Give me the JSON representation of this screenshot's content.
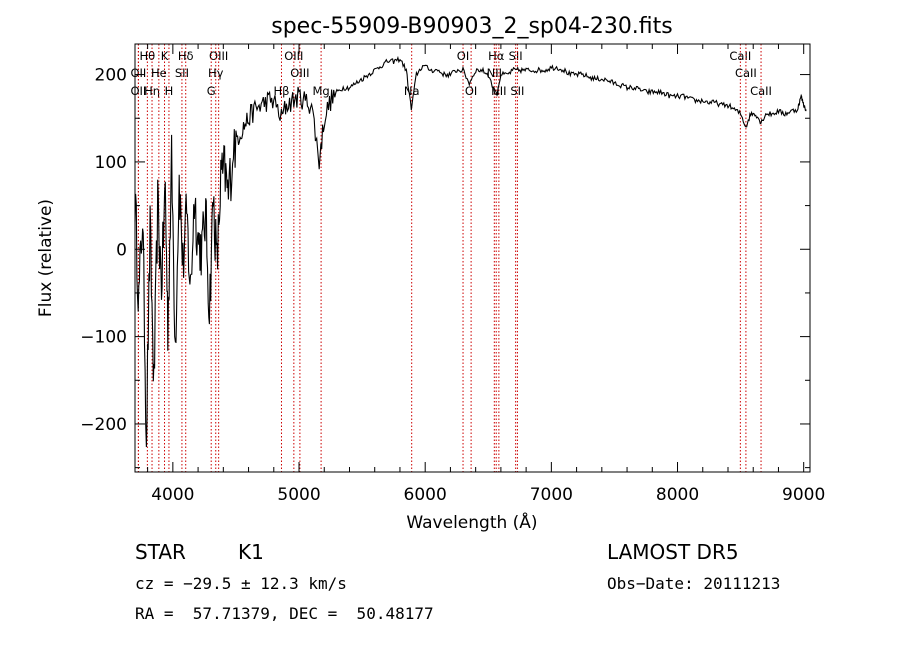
{
  "chart_data": {
    "type": "line",
    "title": "spec-55909-B90903_2_sp04-230.fits",
    "xlabel": "Wavelength (Å)",
    "ylabel": "Flux (relative)",
    "xlim": [
      3700,
      9050
    ],
    "ylim": [
      -255,
      235
    ],
    "xticks": [
      4000,
      5000,
      6000,
      7000,
      8000,
      9000
    ],
    "yticks": [
      -200,
      -100,
      0,
      100,
      200
    ],
    "grid": false,
    "colors": {
      "spectrum": "#000000",
      "lines": "#cc0000"
    },
    "series": [
      {
        "values": [
          [
            3700,
            60
          ],
          [
            3730,
            -60
          ],
          [
            3760,
            40
          ],
          [
            3790,
            -210
          ],
          [
            3820,
            20
          ],
          [
            3850,
            -160
          ],
          [
            3880,
            50
          ],
          [
            3910,
            -40
          ],
          [
            3940,
            70
          ],
          [
            3960,
            -90
          ],
          [
            3990,
            100
          ],
          [
            4020,
            -110
          ],
          [
            4050,
            80
          ],
          [
            4080,
            -20
          ],
          [
            4110,
            40
          ],
          [
            4140,
            -50
          ],
          [
            4170,
            60
          ],
          [
            4200,
            10
          ],
          [
            4230,
            0
          ],
          [
            4260,
            40
          ],
          [
            4290,
            -70
          ],
          [
            4320,
            60
          ],
          [
            4350,
            -20
          ],
          [
            4380,
            80
          ],
          [
            4410,
            90
          ],
          [
            4440,
            60
          ],
          [
            4480,
            120
          ],
          [
            4520,
            130
          ],
          [
            4560,
            140
          ],
          [
            4600,
            150
          ],
          [
            4650,
            160
          ],
          [
            4700,
            165
          ],
          [
            4750,
            170
          ],
          [
            4800,
            170
          ],
          [
            4860,
            150
          ],
          [
            4900,
            165
          ],
          [
            4950,
            170
          ],
          [
            5000,
            175
          ],
          [
            5050,
            170
          ],
          [
            5100,
            165
          ],
          [
            5160,
            100
          ],
          [
            5200,
            150
          ],
          [
            5250,
            170
          ],
          [
            5300,
            180
          ],
          [
            5350,
            185
          ],
          [
            5400,
            185
          ],
          [
            5450,
            190
          ],
          [
            5500,
            195
          ],
          [
            5550,
            200
          ],
          [
            5600,
            205
          ],
          [
            5650,
            210
          ],
          [
            5700,
            215
          ],
          [
            5750,
            215
          ],
          [
            5800,
            218
          ],
          [
            5850,
            205
          ],
          [
            5890,
            160
          ],
          [
            5930,
            200
          ],
          [
            5980,
            210
          ],
          [
            6050,
            205
          ],
          [
            6100,
            205
          ],
          [
            6150,
            200
          ],
          [
            6200,
            200
          ],
          [
            6250,
            205
          ],
          [
            6300,
            205
          ],
          [
            6350,
            190
          ],
          [
            6400,
            205
          ],
          [
            6450,
            205
          ],
          [
            6500,
            200
          ],
          [
            6563,
            175
          ],
          [
            6600,
            200
          ],
          [
            6650,
            200
          ],
          [
            6700,
            205
          ],
          [
            6750,
            205
          ],
          [
            6800,
            205
          ],
          [
            6850,
            205
          ],
          [
            6900,
            205
          ],
          [
            6950,
            205
          ],
          [
            7000,
            208
          ],
          [
            7050,
            208
          ],
          [
            7100,
            205
          ],
          [
            7150,
            200
          ],
          [
            7200,
            200
          ],
          [
            7250,
            200
          ],
          [
            7300,
            197
          ],
          [
            7350,
            195
          ],
          [
            7400,
            195
          ],
          [
            7450,
            193
          ],
          [
            7500,
            190
          ],
          [
            7550,
            188
          ],
          [
            7600,
            185
          ],
          [
            7650,
            185
          ],
          [
            7700,
            183
          ],
          [
            7750,
            180
          ],
          [
            7800,
            180
          ],
          [
            7850,
            180
          ],
          [
            7900,
            178
          ],
          [
            7950,
            175
          ],
          [
            8000,
            175
          ],
          [
            8050,
            175
          ],
          [
            8100,
            172
          ],
          [
            8150,
            170
          ],
          [
            8200,
            170
          ],
          [
            8250,
            168
          ],
          [
            8300,
            168
          ],
          [
            8350,
            165
          ],
          [
            8400,
            165
          ],
          [
            8450,
            160
          ],
          [
            8500,
            155
          ],
          [
            8542,
            140
          ],
          [
            8580,
            155
          ],
          [
            8620,
            155
          ],
          [
            8662,
            145
          ],
          [
            8700,
            155
          ],
          [
            8750,
            155
          ],
          [
            8800,
            158
          ],
          [
            8850,
            155
          ],
          [
            8900,
            158
          ],
          [
            8950,
            160
          ],
          [
            8980,
            175
          ],
          [
            9000,
            165
          ],
          [
            9020,
            160
          ]
        ]
      }
    ],
    "spectral_lines": [
      {
        "label": "Hθ",
        "wavelength": 3798,
        "row": 0
      },
      {
        "label": "OII",
        "wavelength": 3727,
        "row": 1
      },
      {
        "label": "OII",
        "wavelength": 3727,
        "row": 2
      },
      {
        "label": "Hη",
        "wavelength": 3835,
        "row": 2
      },
      {
        "label": "K",
        "wavelength": 3934,
        "row": 0
      },
      {
        "label": "He",
        "wavelength": 3889,
        "row": 1
      },
      {
        "label": "H",
        "wavelength": 3969,
        "row": 2
      },
      {
        "label": "Hδ",
        "wavelength": 4102,
        "row": 0
      },
      {
        "label": "SII",
        "wavelength": 4072,
        "row": 1
      },
      {
        "label": "OIII",
        "wavelength": 4363,
        "row": 0
      },
      {
        "label": "Hγ",
        "wavelength": 4340,
        "row": 1
      },
      {
        "label": "G",
        "wavelength": 4304,
        "row": 2
      },
      {
        "label": "OIII",
        "wavelength": 4959,
        "row": 0
      },
      {
        "label": "OIII",
        "wavelength": 5007,
        "row": 1
      },
      {
        "label": "Hβ",
        "wavelength": 4861,
        "row": 2
      },
      {
        "label": "Mg",
        "wavelength": 5175,
        "row": 2
      },
      {
        "label": "Na",
        "wavelength": 5893,
        "row": 2
      },
      {
        "label": "OI",
        "wavelength": 6300,
        "row": 0
      },
      {
        "label": "OI",
        "wavelength": 6364,
        "row": 2
      },
      {
        "label": "Hα",
        "wavelength": 6563,
        "row": 0
      },
      {
        "label": "SII",
        "wavelength": 6717,
        "row": 0
      },
      {
        "label": "NII",
        "wavelength": 6548,
        "row": 1
      },
      {
        "label": "NII",
        "wavelength": 6584,
        "row": 2
      },
      {
        "label": "SII",
        "wavelength": 6731,
        "row": 2
      },
      {
        "label": "CaII",
        "wavelength": 8498,
        "row": 0
      },
      {
        "label": "CaII",
        "wavelength": 8542,
        "row": 1
      },
      {
        "label": "CaII",
        "wavelength": 8662,
        "row": 2
      }
    ]
  },
  "info": {
    "class_label": "STAR",
    "subclass": "K1",
    "survey": "LAMOST DR5",
    "redshift": "cz = −29.5 ± 12.3 km/s",
    "obs_date": "Obs−Date: 20111213",
    "coords": "RA =  57.71379, DEC =  50.48177"
  }
}
